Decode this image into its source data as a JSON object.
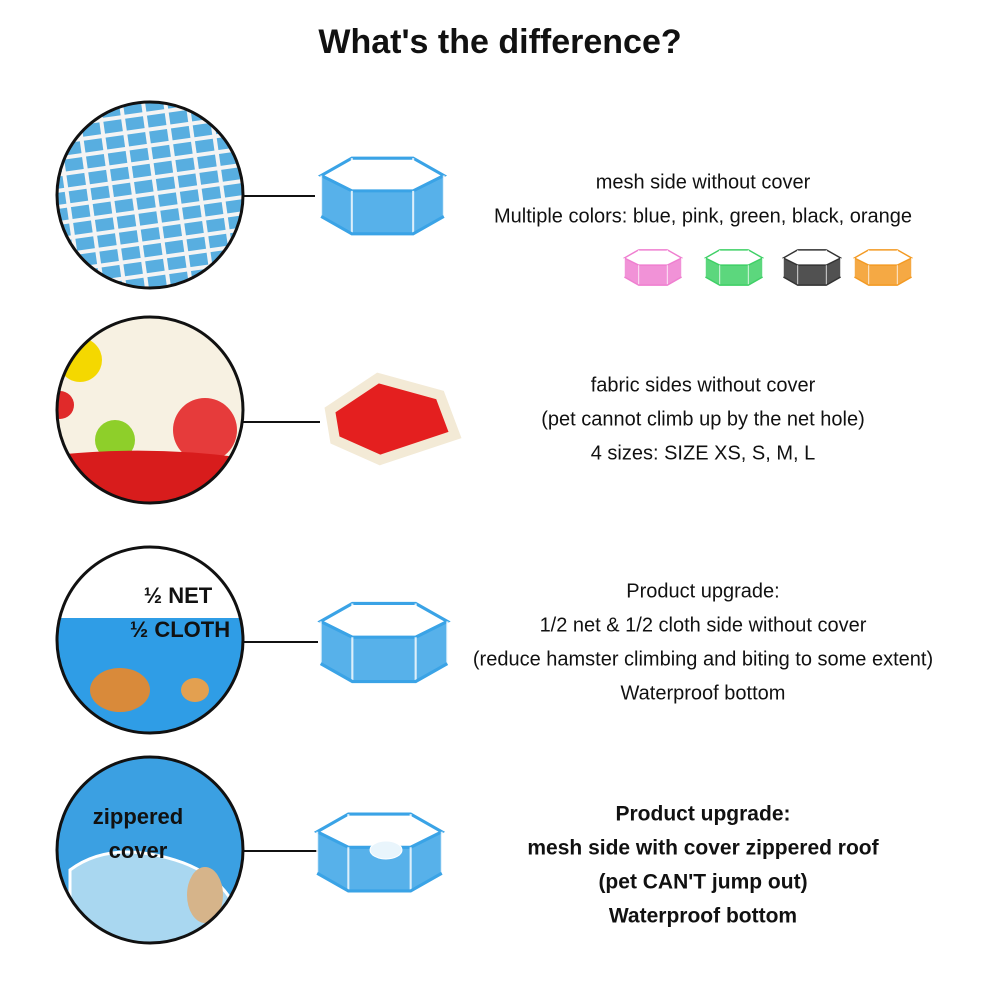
{
  "title": "What's the difference?",
  "rows": [
    {
      "lines": [
        "mesh side without cover",
        "Multiple colors: blue, pink, green, black, orange"
      ]
    },
    {
      "lines": [
        "fabric sides without cover",
        "(pet cannot climb up by the net hole)",
        "4 sizes: SIZE XS, S, M, L"
      ]
    },
    {
      "labels": [
        "½ NET",
        "½ CLOTH"
      ],
      "lines": [
        "Product upgrade:",
        "1/2 net & 1/2 cloth side without cover",
        "(reduce hamster climbing and biting to some extent)",
        "Waterproof bottom"
      ]
    },
    {
      "labels": [
        "zippered",
        "cover"
      ],
      "lines": [
        "Product upgrade:",
        "mesh side with cover zippered roof",
        "(pet CAN'T jump out)",
        "Waterproof bottom"
      ]
    }
  ]
}
